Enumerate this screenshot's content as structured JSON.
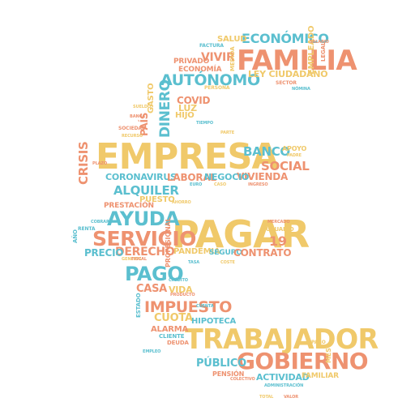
{
  "palette": {
    "yellow": "#f0c96a",
    "teal": "#5bbfcf",
    "salmon": "#ee9270"
  },
  "words": {
    "economico": "ECONÓMICO",
    "familia": "FAMILIA",
    "salud": "SALUD",
    "vivir": "VIVIR",
    "privado": "PRIVADO",
    "economia": "ECONOMÍA",
    "ley_ciudadano": "LEY CIUDADANO",
    "empleado": "EMPLEADO",
    "autonomo": "AUTÓNOMO",
    "covid": "COVID",
    "luz": "LUZ",
    "hijo": "HIJO",
    "dinero": "DINERO",
    "pais": "PAÍS",
    "gasto": "GASTO",
    "empresa": "EMPRESA",
    "banco": "BANCO",
    "apoyo": "APOYO",
    "social": "SOCIAL",
    "vivienda": "VIVIENDA",
    "laboral": "LABORAL",
    "negocio": "NEGOCIO",
    "crisis": "CRISIS",
    "coronavirus": "CORONAVIRUS",
    "alquiler": "ALQUILER",
    "puesto": "PUESTO",
    "prestacion": "PRESTACIÓN",
    "ayuda": "AYUDA",
    "pagar": "PAGAR",
    "servicio": "SERVICIO",
    "precio": "PRECIO",
    "derecho": "DERECHO",
    "pandemia": "PANDEMIA",
    "seguro": "SEGURO",
    "contrato": "CONTRATO",
    "pago": "PAGO",
    "casa": "CASA",
    "vida": "VIDA",
    "impuesto": "IMPUESTO",
    "cuota": "CUOTA",
    "hipoteca": "HIPOTECA",
    "alarma": "ALARMA",
    "trabajador": "TRABAJADOR",
    "publico": "PÚBLICO",
    "gobierno": "GOBIERNO",
    "pension": "PENSIÓN",
    "actividad": "ACTIVIDAD",
    "familiar": "FAMILIAR",
    "num19": "19",
    "usuario": "USUARIO",
    "factura": "FACTURA",
    "sociedad": "SOCIEDAD",
    "recurso": "RECURSO",
    "renta": "RENTA",
    "cliente": "CLIENTE",
    "deuda": "DEUDA",
    "legal": "LEGAL",
    "padre": "PADRE",
    "credito": "CRÉDITO",
    "producto": "PRODUCTO",
    "general": "GENERAL",
    "colectivo": "COLECTIVO",
    "administracion": "ADMINISTRACIÓN",
    "profesional": "PROFESIONAL",
    "medida": "MEDIDA",
    "estado": "ESTADO",
    "mes": "MES",
    "ano": "AÑO",
    "persona": "PERSONA",
    "sector": "SECTOR",
    "tiempo": "TIEMPO",
    "parte": "PARTE",
    "plazo": "PLAZO",
    "euro": "EURO",
    "caso": "CASO",
    "ingreso": "INGRESO",
    "cobrar": "COBRAR",
    "ahorro": "AHORRO",
    "mercado": "MERCADO",
    "tasa": "TASA",
    "coste": "COSTE",
    "fiscal": "FISCAL",
    "empleo": "EMPLEO",
    "paro": "PARO",
    "salario": "SALARIO",
    "nomina": "NÓMINA",
    "sueldo": "SUELDO",
    "banca": "BANCA",
    "cuenta": "CUENTA",
    "total": "TOTAL",
    "valor": "VALOR"
  }
}
